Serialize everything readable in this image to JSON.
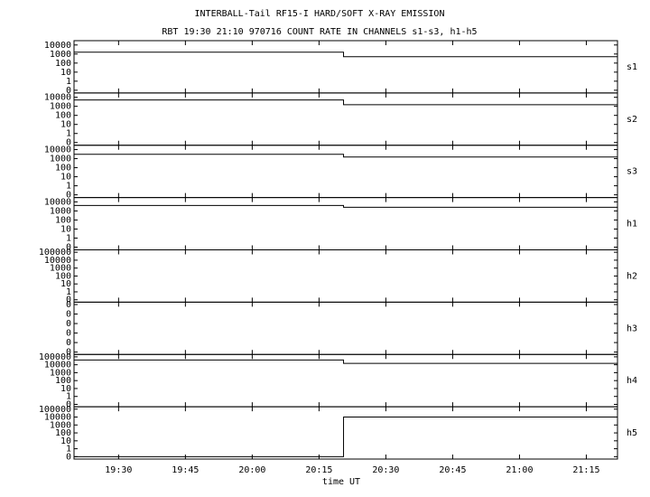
{
  "chart_data": [
    {
      "type": "line",
      "title": "INTERBALL-Tail RF15-I HARD/SOFT X-RAY EMISSION",
      "subtitle": "RBT 19:30 21:10 970716  COUNT RATE IN CHANNELS s1-s3, h1-h5",
      "x": [
        1160,
        1220.5,
        1220.5,
        1282
      ],
      "xlim": [
        1160,
        1282
      ],
      "ylim": [
        0.05,
        30000
      ],
      "log_scale": true,
      "yticks": [
        {
          "value": 0.1,
          "label": "0"
        },
        1,
        10,
        100,
        1000,
        10000
      ],
      "series": [
        {
          "name": "s1",
          "color": "#000000",
          "values": [
            1600,
            1600,
            500,
            500
          ]
        }
      ]
    },
    {
      "type": "line",
      "x": [
        1160,
        1220.5,
        1220.5,
        1282
      ],
      "xlim": [
        1160,
        1282
      ],
      "ylim": [
        0.05,
        30000
      ],
      "log_scale": true,
      "yticks": [
        {
          "value": 0.1,
          "label": "0"
        },
        1,
        10,
        100,
        1000,
        10000
      ],
      "series": [
        {
          "name": "s2",
          "color": "#000000",
          "values": [
            5000,
            5000,
            1500,
            1500
          ]
        }
      ]
    },
    {
      "type": "line",
      "x": [
        1160,
        1220.5,
        1220.5,
        1282
      ],
      "xlim": [
        1160,
        1282
      ],
      "ylim": [
        0.05,
        30000
      ],
      "log_scale": true,
      "yticks": [
        {
          "value": 0.1,
          "label": "0"
        },
        1,
        10,
        100,
        1000,
        10000
      ],
      "series": [
        {
          "name": "s3",
          "color": "#000000",
          "values": [
            3000,
            3000,
            1500,
            1500
          ]
        }
      ]
    },
    {
      "type": "line",
      "x": [
        1160,
        1220.5,
        1220.5,
        1282
      ],
      "xlim": [
        1160,
        1282
      ],
      "ylim": [
        0.05,
        30000
      ],
      "log_scale": true,
      "yticks": [
        {
          "value": 0.1,
          "label": "0"
        },
        1,
        10,
        100,
        1000,
        10000
      ],
      "series": [
        {
          "name": "h1",
          "color": "#000000",
          "values": [
            4000,
            4000,
            2500,
            2500
          ]
        }
      ]
    },
    {
      "type": "line",
      "x": [
        1160,
        1220.5,
        1220.5,
        1282
      ],
      "xlim": [
        1160,
        1282
      ],
      "ylim": [
        0.05,
        200000
      ],
      "log_scale": true,
      "yticks": [
        {
          "value": 0.1,
          "label": "0"
        },
        1,
        10,
        100,
        1000,
        10000,
        100000
      ],
      "series": [
        {
          "name": "h2",
          "color": "#000000",
          "values": [
            null,
            null,
            null,
            null
          ]
        }
      ]
    },
    {
      "type": "line",
      "x": [
        1160,
        1220.5,
        1220.5,
        1282
      ],
      "xlim": [
        1160,
        1282
      ],
      "ylim": [
        -0.02,
        0.42
      ],
      "log_scale": false,
      "yticks": [
        0,
        {
          "value": 0.08,
          "label": "0"
        },
        {
          "value": 0.16,
          "label": "0"
        },
        {
          "value": 0.24,
          "label": "0"
        },
        {
          "value": 0.32,
          "label": "0"
        },
        {
          "value": 0.4,
          "label": "0"
        }
      ],
      "series": [
        {
          "name": "h3",
          "color": "#000000",
          "values": [
            null,
            null,
            null,
            null
          ]
        }
      ]
    },
    {
      "type": "line",
      "x": [
        1160,
        1220.5,
        1220.5,
        1282
      ],
      "xlim": [
        1160,
        1282
      ],
      "ylim": [
        0.05,
        200000
      ],
      "log_scale": true,
      "yticks": [
        {
          "value": 0.1,
          "label": "0"
        },
        1,
        10,
        100,
        1000,
        10000,
        100000
      ],
      "series": [
        {
          "name": "h4",
          "color": "#000000",
          "values": [
            40000,
            40000,
            15000,
            15000
          ]
        }
      ]
    },
    {
      "type": "line",
      "x": [
        1160,
        1220.5,
        1220.5,
        1282
      ],
      "xlim": [
        1160,
        1282
      ],
      "ylim": [
        0.05,
        200000
      ],
      "log_scale": true,
      "yticks": [
        {
          "value": 0.1,
          "label": "0"
        },
        1,
        10,
        100,
        1000,
        10000,
        100000
      ],
      "xlabel": "time UT",
      "xticks": [
        {
          "value": 1170,
          "label": "19:30"
        },
        {
          "value": 1185,
          "label": "19:45"
        },
        {
          "value": 1200,
          "label": "20:00"
        },
        {
          "value": 1215,
          "label": "20:15"
        },
        {
          "value": 1230,
          "label": "20:30"
        },
        {
          "value": 1245,
          "label": "20:45"
        },
        {
          "value": 1260,
          "label": "21:00"
        },
        {
          "value": 1275,
          "label": "21:15"
        }
      ],
      "series": [
        {
          "name": "h5",
          "color": "#000000",
          "values": [
            0.1,
            0.1,
            10000,
            10000
          ]
        }
      ]
    }
  ]
}
